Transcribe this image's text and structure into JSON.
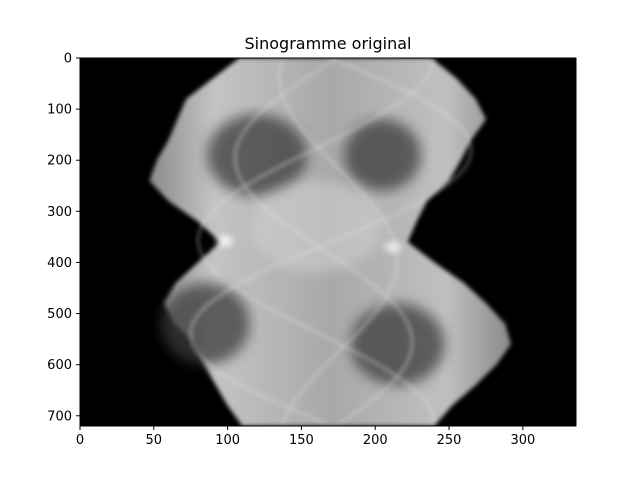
{
  "chart_data": {
    "type": "heatmap",
    "title": "Sinogramme original",
    "xlabel": "",
    "ylabel": "",
    "xlim": [
      0,
      336
    ],
    "ylim": [
      720,
      0
    ],
    "x_ticks": [
      0,
      50,
      100,
      150,
      200,
      250,
      300
    ],
    "y_ticks": [
      0,
      100,
      200,
      300,
      400,
      500,
      600,
      700
    ],
    "colormap": "gray",
    "grid": false,
    "legend": "none",
    "background_color": "#000000",
    "max_color": "#ffffff",
    "outline": {
      "y": [
        0,
        40,
        80,
        120,
        160,
        200,
        240,
        280,
        320,
        360,
        400,
        440,
        480,
        520,
        560,
        600,
        640,
        680,
        720
      ],
      "left_x": [
        108,
        90,
        72,
        66,
        60,
        52,
        47,
        60,
        80,
        95,
        80,
        65,
        57,
        64,
        78,
        84,
        92,
        100,
        110
      ],
      "right_x": [
        238,
        255,
        268,
        275,
        265,
        258,
        250,
        235,
        228,
        222,
        240,
        260,
        275,
        288,
        292,
        282,
        268,
        252,
        240
      ]
    },
    "bright_spots": [
      {
        "x": 98,
        "y": 358,
        "value": 1.0
      },
      {
        "x": 212,
        "y": 370,
        "value": 0.85
      }
    ]
  }
}
